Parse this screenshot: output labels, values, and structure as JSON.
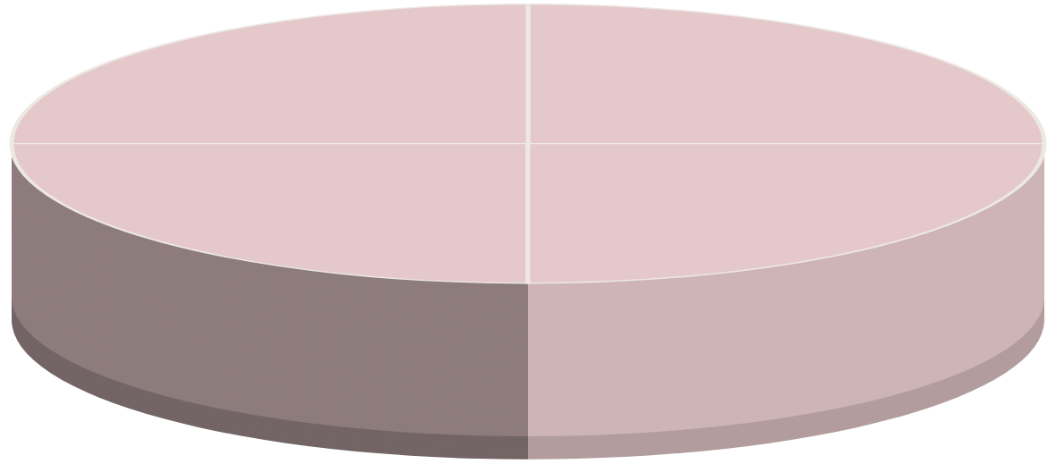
{
  "chart_data": {
    "type": "pie",
    "values": [
      25,
      25,
      25,
      25
    ],
    "color": "#e5c8ca",
    "data_labels": false
  }
}
